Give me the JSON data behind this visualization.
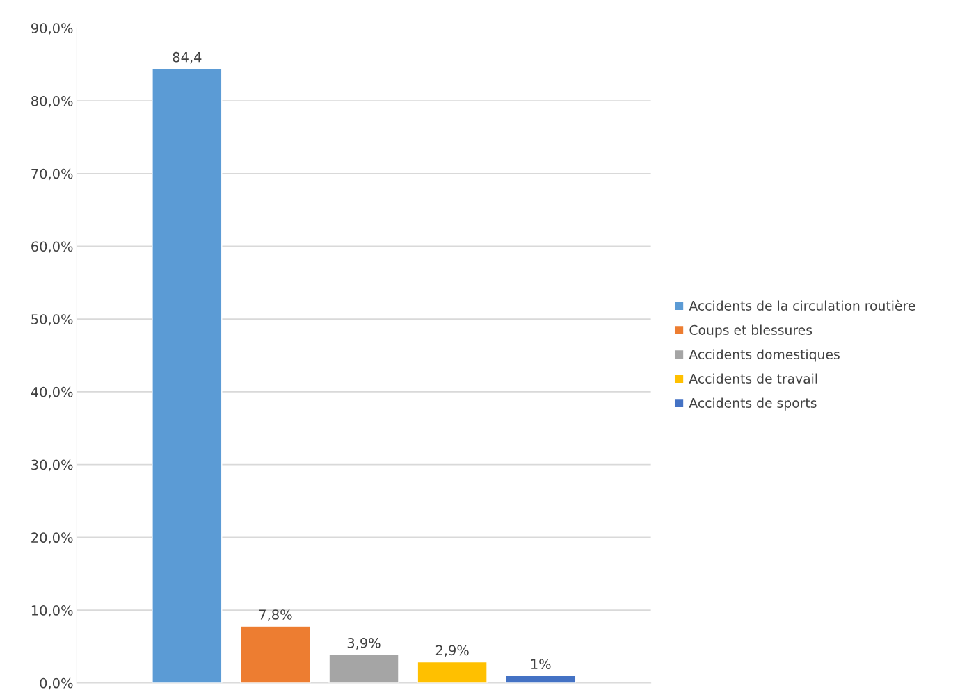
{
  "chart_data": {
    "type": "bar",
    "categories": [
      null
    ],
    "series": [
      {
        "name": "Accidents de la circulation routière",
        "color": "#5b9bd5",
        "values": [
          84.4
        ],
        "value_labels": [
          "84,4"
        ]
      },
      {
        "name": "Coups et blessures",
        "color": "#ed7d31",
        "values": [
          7.8
        ],
        "value_labels": [
          "7,8%"
        ]
      },
      {
        "name": "Accidents domestiques",
        "color": "#a5a5a5",
        "values": [
          3.9
        ],
        "value_labels": [
          "3,9%"
        ]
      },
      {
        "name": "Accidents de travail",
        "color": "#ffc000",
        "values": [
          2.9
        ],
        "value_labels": [
          "2,9%"
        ]
      },
      {
        "name": "Accidents de sports",
        "color": "#4472c4",
        "values": [
          1
        ],
        "value_labels": [
          "1%"
        ]
      }
    ],
    "ylim": [
      0,
      90
    ],
    "yticks": [
      {
        "value": 0,
        "label": "0,0%"
      },
      {
        "value": 10,
        "label": "10,0%"
      },
      {
        "value": 20,
        "label": "20,0%"
      },
      {
        "value": 30,
        "label": "30,0%"
      },
      {
        "value": 40,
        "label": "40,0%"
      },
      {
        "value": 50,
        "label": "50,0%"
      },
      {
        "value": 60,
        "label": "60,0%"
      },
      {
        "value": 70,
        "label": "70,0%"
      },
      {
        "value": 80,
        "label": "80,0%"
      },
      {
        "value": 90,
        "label": "90,0%"
      }
    ],
    "grid": "y",
    "legend": "right"
  }
}
